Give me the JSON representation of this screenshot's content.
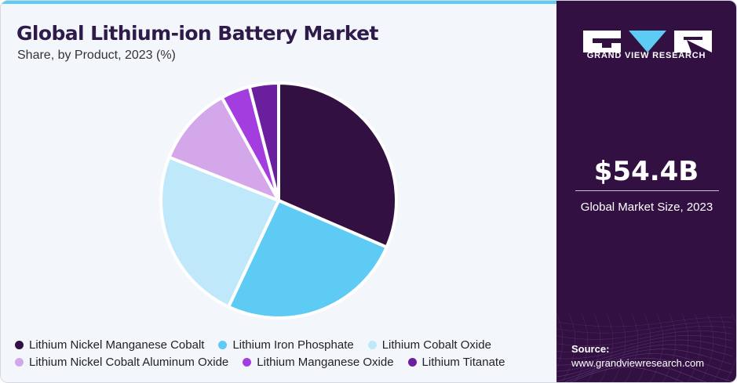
{
  "header": {
    "title": "Global Lithium-ion Battery Market",
    "subtitle": "Share, by Product, 2023 (%)"
  },
  "chart_data": {
    "type": "pie",
    "categories": [
      "Lithium Nickel Manganese Cobalt",
      "Lithium Iron Phosphate",
      "Lithium Cobalt Oxide",
      "Lithium Nickel Cobalt Aluminum Oxide",
      "Lithium Manganese Oxide",
      "Lithium Titanate"
    ],
    "values": [
      31.5,
      25.5,
      24.0,
      11.0,
      4.0,
      4.0
    ],
    "colors": [
      "#331042",
      "#5ecbf5",
      "#bfe9fb",
      "#d4a7ea",
      "#a33de0",
      "#6a1f9e"
    ],
    "legend": "bottom"
  },
  "brand": {
    "name": "GRAND VIEW RESEARCH",
    "logo_icon": "grand-view-research-logo",
    "accent": "#5ecbf5",
    "panel_color": "#331042"
  },
  "market": {
    "size": "$54.4B",
    "label": "Global Market Size, 2023"
  },
  "source": {
    "label": "Source:",
    "url": "www.grandviewresearch.com"
  }
}
